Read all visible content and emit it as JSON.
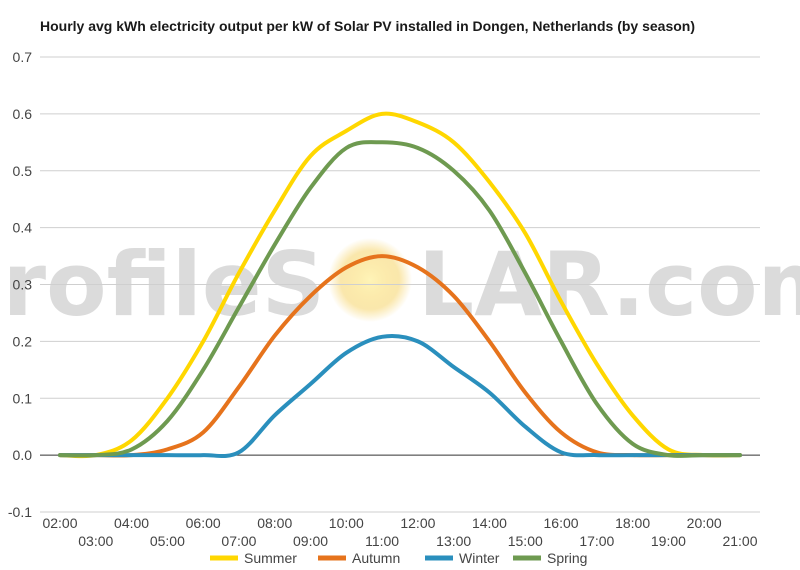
{
  "chart_data": {
    "type": "line",
    "title": "Hourly avg kWh electricity output per kW of Solar PV installed in Dongen, Netherlands (by season)",
    "x": [
      "02:00",
      "03:00",
      "04:00",
      "05:00",
      "06:00",
      "07:00",
      "08:00",
      "09:00",
      "10:00",
      "11:00",
      "12:00",
      "13:00",
      "14:00",
      "15:00",
      "16:00",
      "17:00",
      "18:00",
      "19:00",
      "20:00",
      "21:00"
    ],
    "series": [
      {
        "name": "Summer",
        "color": "#ffd700",
        "values": [
          0.0,
          0.0,
          0.026,
          0.1,
          0.2,
          0.32,
          0.43,
          0.526,
          0.57,
          0.6,
          0.585,
          0.55,
          0.48,
          0.39,
          0.27,
          0.16,
          0.07,
          0.01,
          0.0,
          0.0
        ]
      },
      {
        "name": "Autumn",
        "color": "#e6731c",
        "values": [
          0.0,
          0.0,
          0.0,
          0.01,
          0.04,
          0.12,
          0.21,
          0.28,
          0.33,
          0.35,
          0.33,
          0.28,
          0.2,
          0.11,
          0.04,
          0.005,
          0.0,
          0.0,
          0.0,
          0.0
        ]
      },
      {
        "name": "Winter",
        "color": "#2a8fbd",
        "values": [
          0.0,
          0.0,
          0.0,
          0.0,
          0.0,
          0.005,
          0.07,
          0.125,
          0.18,
          0.208,
          0.2,
          0.155,
          0.11,
          0.05,
          0.005,
          0.0,
          0.0,
          0.0,
          0.0,
          0.0
        ]
      },
      {
        "name": "Spring",
        "color": "#6e9a50",
        "values": [
          0.0,
          0.0,
          0.01,
          0.06,
          0.15,
          0.26,
          0.37,
          0.47,
          0.54,
          0.55,
          0.54,
          0.5,
          0.43,
          0.32,
          0.2,
          0.09,
          0.02,
          0.0,
          0.0,
          0.0
        ]
      }
    ],
    "xlabel": "",
    "ylabel": "",
    "ylim": [
      -0.1,
      0.7
    ],
    "yticks": [
      "0.7",
      "0.6",
      "0.5",
      "0.4",
      "0.3",
      "0.2",
      "0.1",
      "0.0",
      "-0.1"
    ],
    "grid": true,
    "legend": "bottom"
  },
  "watermark": {
    "left": "profileS",
    "right": "LAR.com",
    "sun_color": "#f7d774"
  }
}
